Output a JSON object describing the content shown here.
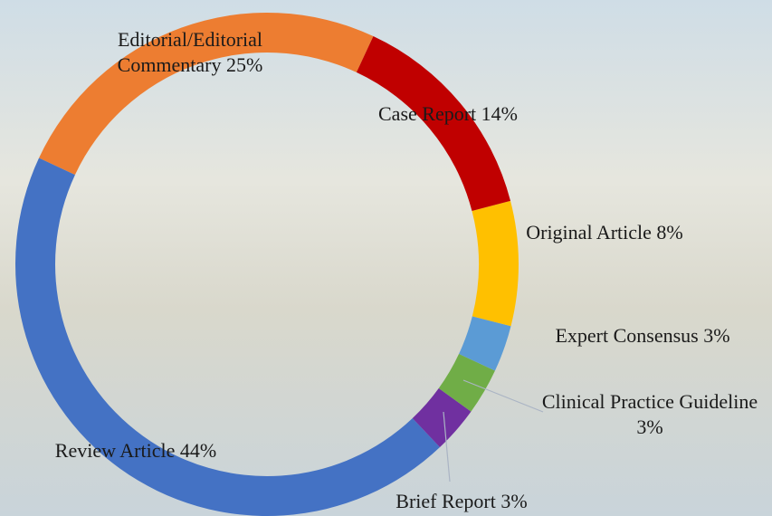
{
  "chart_data": {
    "type": "donut",
    "categories": [
      "Case Report",
      "Original Article",
      "Expert Consensus",
      "Clinical Practice Guideline",
      "Brief Report",
      "Review Article",
      "Editorial/Editorial Commentary"
    ],
    "values": [
      14,
      8,
      3,
      3,
      3,
      44,
      25
    ],
    "value_labels": [
      "14%",
      "8%",
      "3%",
      "3%",
      "3%",
      "44%",
      "25%"
    ],
    "colors": [
      "#c00000",
      "#ffc000",
      "#5b9bd5",
      "#70ad47",
      "#7030a0",
      "#4472c4",
      "#ed7d31"
    ]
  }
}
